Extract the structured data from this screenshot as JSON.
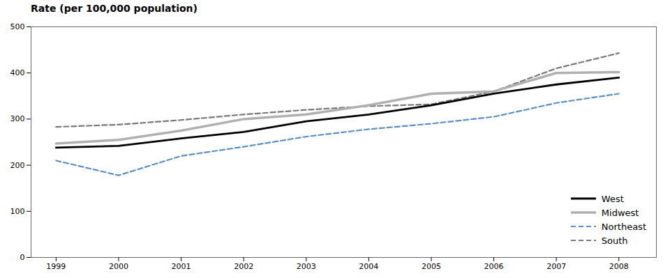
{
  "chart_data": {
    "type": "line",
    "y_label": "Rate (per 100,000 population)",
    "x": [
      1999,
      2000,
      2001,
      2002,
      2003,
      2004,
      2005,
      2006,
      2007,
      2008
    ],
    "series": [
      {
        "name": "West",
        "color": "#000000",
        "line_style": "solid",
        "values": [
          238,
          242,
          258,
          272,
          295,
          310,
          330,
          355,
          375,
          390
        ]
      },
      {
        "name": "Midwest",
        "color": "#b0b0b0",
        "line_style": "solid",
        "values": [
          247,
          255,
          275,
          300,
          310,
          330,
          355,
          360,
          400,
          402
        ]
      },
      {
        "name": "Northeast",
        "color": "#5b8fcc",
        "line_style": "dashed",
        "values": [
          210,
          178,
          220,
          240,
          262,
          278,
          290,
          305,
          335,
          355
        ]
      },
      {
        "name": "South",
        "color": "#777777",
        "line_style": "dashed",
        "values": [
          283,
          288,
          298,
          310,
          320,
          328,
          332,
          360,
          410,
          443
        ]
      }
    ],
    "xlim": [
      1998.6,
      2008.6
    ],
    "xticks": [
      1999,
      2000,
      2001,
      2002,
      2003,
      2004,
      2005,
      2006,
      2007,
      2008
    ],
    "ylim": [
      0,
      500
    ],
    "yticks": [
      0,
      100,
      200,
      300,
      400,
      500
    ],
    "grid": false,
    "legend": "lower right"
  }
}
